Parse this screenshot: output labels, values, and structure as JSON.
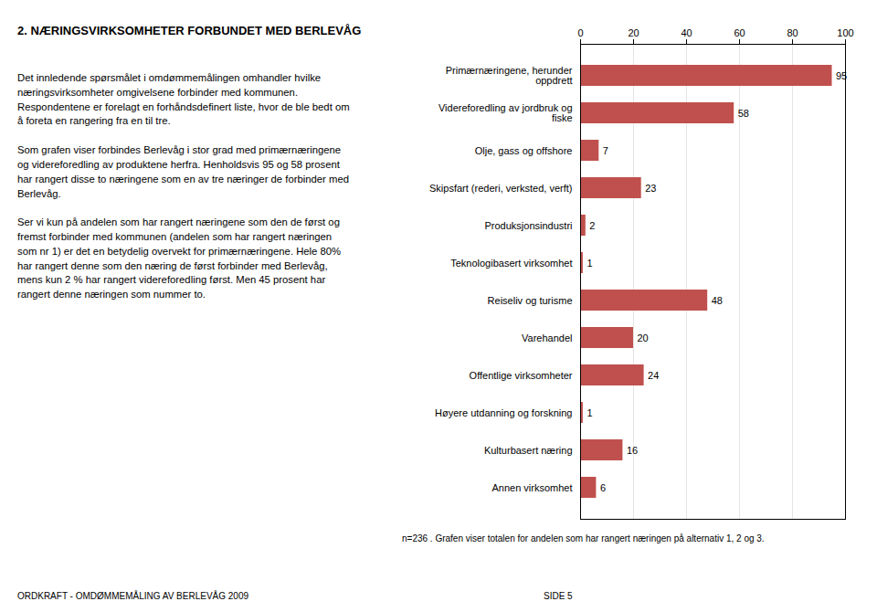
{
  "chart_data": {
    "type": "bar",
    "orientation": "horizontal",
    "title": "2. NÆRINGSVIRKSOMHETER FORBUNDET MED BERLEVÅG",
    "body_text": "Det innledende spørsmålet i omdømmemålingen omhandler hvilke\nnæringsvirksomheter omgivelsene forbinder med kommunen.\nRespondentene er forelagt en forhåndsdefinert liste, hvor de ble bedt om\nå foreta en rangering fra en til tre.\n\nSom grafen viser forbindes Berlevåg i stor grad med primærnæringene\nog videreforedling av produktene herfra. Henholdsvis 95 og 58 prosent\nhar rangert disse to næringene som en av tre næringer de forbinder med\nBerlevåg.\n\nSer vi kun på andelen som har rangert næringene som den de først og\nfremst forbinder med kommunen (andelen som har rangert næringen\nsom nr 1) er det en betydelig overvekt for primærnæringene. Hele 80%\nhar rangert denne som den næring de først forbinder med Berlevåg,\nmens kun 2 % har rangert videreforedling først. Men 45 prosent har\nrangert denne næringen som nummer to.",
    "footnote": "n=236 . Grafen viser totalen for andelen som har rangert næringen på alternativ 1, 2 og 3.",
    "footer_left": "ORDKRAFT - OMDØMMEMÅLING AV BERLEVÅG 2009",
    "footer_right": "SIDE 5",
    "categories": [
      "Primærnæringene, herunder\noppdrett",
      "Videreforedling av jordbruk og\nfiske",
      "Olje, gass og offshore",
      "Skipsfart (rederi, verksted, verft)",
      "Produksjonsindustri",
      "Teknologibasert virksomhet",
      "Reiseliv og turisme",
      "Varehandel",
      "Offentlige virksomheter",
      "Høyere utdanning og forskning",
      "Kulturbasert næring",
      "Annen virksomhet"
    ],
    "values": [
      95,
      58,
      7,
      23,
      2,
      1,
      48,
      20,
      24,
      1,
      16,
      6
    ],
    "color": "#c0504d",
    "xlim": [
      0,
      100
    ],
    "xticks": [
      0,
      20,
      40,
      60,
      80,
      100
    ],
    "grid": true,
    "data_labels": true
  }
}
